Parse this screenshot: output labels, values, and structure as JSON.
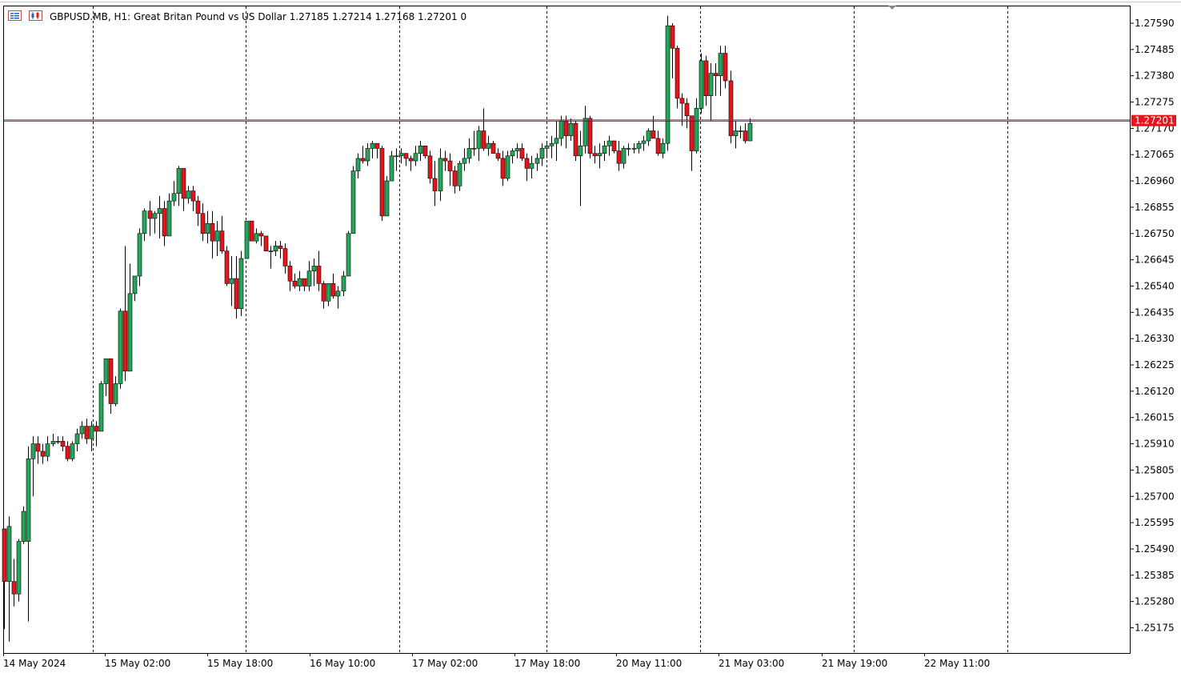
{
  "header": {
    "symbol": "GBPUSD.MB",
    "timeframe": "H1:",
    "description": "Great Britan Pound vs US Dollar",
    "ohlc": "1.27185 1.27214 1.27168 1.27201",
    "volume": "0",
    "icons": [
      "toolbar-list-icon",
      "chart-candles-icon"
    ]
  },
  "colors": {
    "bull": "#26a65b",
    "bear": "#e8141b",
    "wick": "#000000",
    "grid": "#000000",
    "bid_line": "#1f1f9e",
    "ask_line": "#d62f2f",
    "price_tag": "#e8141b"
  },
  "chart_data": {
    "type": "candlestick",
    "symbol": "GBPUSD.MB",
    "timeframe": "H1",
    "current_price": "1.27201",
    "ylim": [
      1.2509,
      1.2767
    ],
    "y_ticks": [
      "1.27590",
      "1.27485",
      "1.27380",
      "1.27275",
      "1.27170",
      "1.27065",
      "1.26960",
      "1.26855",
      "1.26750",
      "1.26645",
      "1.26540",
      "1.26435",
      "1.26330",
      "1.26225",
      "1.26120",
      "1.26015",
      "1.25910",
      "1.25805",
      "1.25700",
      "1.25595",
      "1.25490",
      "1.25385",
      "1.25280",
      "1.25175"
    ],
    "x_ticks": [
      "14 May 2024",
      "15 May 02:00",
      "15 May 18:00",
      "16 May 10:00",
      "17 May 02:00",
      "17 May 18:00",
      "20 May 11:00",
      "21 May 03:00",
      "21 May 19:00",
      "22 May 11:00"
    ],
    "period_separators": 9,
    "candles": [
      [
        1.2557,
        1.2557,
        1.2517,
        1.2536
      ],
      [
        1.2536,
        1.2562,
        1.2512,
        1.2558
      ],
      [
        1.2536,
        1.2545,
        1.2526,
        1.2531
      ],
      [
        1.2531,
        1.2553,
        1.2528,
        1.2552
      ],
      [
        1.2552,
        1.2566,
        1.2551,
        1.2564
      ],
      [
        1.2552,
        1.259,
        1.252,
        1.2585
      ],
      [
        1.2585,
        1.2594,
        1.257,
        1.2591
      ],
      [
        1.2591,
        1.2594,
        1.2583,
        1.2588
      ],
      [
        1.2588,
        1.2591,
        1.2583,
        1.2586
      ],
      [
        1.2586,
        1.2594,
        1.2584,
        1.2591
      ],
      [
        1.2591,
        1.2595,
        1.259,
        1.2592
      ],
      [
        1.2592,
        1.2594,
        1.2591,
        1.2592
      ],
      [
        1.2592,
        1.2594,
        1.2588,
        1.259
      ],
      [
        1.259,
        1.2592,
        1.2584,
        1.2585
      ],
      [
        1.2585,
        1.2592,
        1.2584,
        1.2591
      ],
      [
        1.2591,
        1.2597,
        1.2588,
        1.2595
      ],
      [
        1.2595,
        1.26,
        1.2593,
        1.2598
      ],
      [
        1.2598,
        1.2601,
        1.2591,
        1.2593
      ],
      [
        1.2593,
        1.26,
        1.2588,
        1.2598
      ],
      [
        1.2598,
        1.26,
        1.259,
        1.2596
      ],
      [
        1.2596,
        1.2616,
        1.2596,
        1.2615
      ],
      [
        1.2615,
        1.2625,
        1.261,
        1.2625
      ],
      [
        1.2625,
        1.2625,
        1.2603,
        1.2607
      ],
      [
        1.2607,
        1.2618,
        1.2606,
        1.2615
      ],
      [
        1.2615,
        1.2645,
        1.2613,
        1.2644
      ],
      [
        1.2644,
        1.267,
        1.2616,
        1.262
      ],
      [
        1.262,
        1.2663,
        1.262,
        1.2651
      ],
      [
        1.2651,
        1.2658,
        1.2648,
        1.2658
      ],
      [
        1.2658,
        1.2677,
        1.2654,
        1.2675
      ],
      [
        1.2675,
        1.2685,
        1.2672,
        1.2684
      ],
      [
        1.2684,
        1.2688,
        1.2674,
        1.2681
      ],
      [
        1.2681,
        1.2684,
        1.2675,
        1.2683
      ],
      [
        1.2683,
        1.269,
        1.2673,
        1.2685
      ],
      [
        1.2685,
        1.2688,
        1.267,
        1.2674
      ],
      [
        1.2674,
        1.2691,
        1.2674,
        1.2688
      ],
      [
        1.2688,
        1.2696,
        1.2686,
        1.2691
      ],
      [
        1.2691,
        1.2702,
        1.2686,
        1.2701
      ],
      [
        1.2701,
        1.27,
        1.2684,
        1.2689
      ],
      [
        1.2689,
        1.2694,
        1.2687,
        1.2692
      ],
      [
        1.2692,
        1.2694,
        1.2684,
        1.2688
      ],
      [
        1.2688,
        1.269,
        1.2678,
        1.2683
      ],
      [
        1.2683,
        1.2687,
        1.2672,
        1.2675
      ],
      [
        1.2675,
        1.2684,
        1.2671,
        1.2679
      ],
      [
        1.2679,
        1.2684,
        1.2665,
        1.2672
      ],
      [
        1.2672,
        1.268,
        1.2666,
        1.2676
      ],
      [
        1.2676,
        1.2682,
        1.2667,
        1.2668
      ],
      [
        1.2668,
        1.267,
        1.2654,
        1.2655
      ],
      [
        1.2655,
        1.2666,
        1.2646,
        1.2657
      ],
      [
        1.2657,
        1.2666,
        1.2641,
        1.2645
      ],
      [
        1.2645,
        1.2668,
        1.2642,
        1.2665
      ],
      [
        1.2665,
        1.268,
        1.2665,
        1.268
      ],
      [
        1.268,
        1.2678,
        1.2672,
        1.2672
      ],
      [
        1.2672,
        1.2677,
        1.2671,
        1.2675
      ],
      [
        1.2675,
        1.2676,
        1.267,
        1.2674
      ],
      [
        1.2674,
        1.2673,
        1.2668,
        1.2668
      ],
      [
        1.2668,
        1.267,
        1.2661,
        1.2668
      ],
      [
        1.2668,
        1.2672,
        1.2666,
        1.267
      ],
      [
        1.267,
        1.2672,
        1.2665,
        1.2669
      ],
      [
        1.2669,
        1.2671,
        1.2659,
        1.2662
      ],
      [
        1.2662,
        1.2664,
        1.2652,
        1.2656
      ],
      [
        1.2656,
        1.2659,
        1.2653,
        1.2654
      ],
      [
        1.2654,
        1.266,
        1.2652,
        1.2657
      ],
      [
        1.2657,
        1.2657,
        1.2652,
        1.2654
      ],
      [
        1.2654,
        1.2664,
        1.2652,
        1.266
      ],
      [
        1.266,
        1.2665,
        1.2654,
        1.2662
      ],
      [
        1.2662,
        1.2668,
        1.2652,
        1.2655
      ],
      [
        1.2655,
        1.2656,
        1.2645,
        1.2648
      ],
      [
        1.2648,
        1.2655,
        1.2646,
        1.2655
      ],
      [
        1.2655,
        1.2659,
        1.2649,
        1.265
      ],
      [
        1.265,
        1.2654,
        1.2645,
        1.2652
      ],
      [
        1.2652,
        1.266,
        1.265,
        1.2658
      ],
      [
        1.2658,
        1.2676,
        1.2658,
        1.2675
      ],
      [
        1.2675,
        1.2702,
        1.2675,
        1.27
      ],
      [
        1.27,
        1.2707,
        1.2697,
        1.2705
      ],
      [
        1.2705,
        1.271,
        1.2703,
        1.2704
      ],
      [
        1.2704,
        1.2711,
        1.2702,
        1.2709
      ],
      [
        1.2709,
        1.2712,
        1.2705,
        1.2711
      ],
      [
        1.2711,
        1.2709,
        1.2705,
        1.2709
      ],
      [
        1.2709,
        1.271,
        1.268,
        1.2682
      ],
      [
        1.2682,
        1.2698,
        1.2682,
        1.2696
      ],
      [
        1.2696,
        1.2708,
        1.2696,
        1.2706
      ],
      [
        1.2706,
        1.2709,
        1.27,
        1.2706
      ],
      [
        1.2706,
        1.2709,
        1.2703,
        1.2707
      ],
      [
        1.2707,
        1.2707,
        1.2702,
        1.2705
      ],
      [
        1.2705,
        1.2706,
        1.27,
        1.2704
      ],
      [
        1.2704,
        1.271,
        1.2702,
        1.2707
      ],
      [
        1.2707,
        1.2712,
        1.2704,
        1.271
      ],
      [
        1.271,
        1.271,
        1.2705,
        1.2706
      ],
      [
        1.2706,
        1.2708,
        1.2695,
        1.2697
      ],
      [
        1.2697,
        1.2704,
        1.2686,
        1.2692
      ],
      [
        1.2692,
        1.2709,
        1.2688,
        1.2705
      ],
      [
        1.2705,
        1.2708,
        1.27,
        1.2704
      ],
      [
        1.2704,
        1.2707,
        1.2694,
        1.27
      ],
      [
        1.27,
        1.2702,
        1.2691,
        1.2694
      ],
      [
        1.2694,
        1.2704,
        1.2692,
        1.2703
      ],
      [
        1.2703,
        1.2709,
        1.27,
        1.2705
      ],
      [
        1.2705,
        1.2713,
        1.2703,
        1.2709
      ],
      [
        1.2709,
        1.2716,
        1.2706,
        1.2709
      ],
      [
        1.2709,
        1.2718,
        1.2704,
        1.2716
      ],
      [
        1.2716,
        1.2725,
        1.2708,
        1.2709
      ],
      [
        1.2709,
        1.2714,
        1.2706,
        1.2711
      ],
      [
        1.2711,
        1.2712,
        1.2707,
        1.2707
      ],
      [
        1.2707,
        1.2709,
        1.2704,
        1.2705
      ],
      [
        1.2705,
        1.2708,
        1.2694,
        1.2697
      ],
      [
        1.2697,
        1.2708,
        1.2696,
        1.2706
      ],
      [
        1.2706,
        1.2709,
        1.2703,
        1.2708
      ],
      [
        1.2708,
        1.2711,
        1.2705,
        1.2709
      ],
      [
        1.2709,
        1.2711,
        1.2704,
        1.2705
      ],
      [
        1.2705,
        1.2707,
        1.2696,
        1.2701
      ],
      [
        1.2701,
        1.2706,
        1.2697,
        1.2703
      ],
      [
        1.2703,
        1.2707,
        1.27,
        1.2705
      ],
      [
        1.2705,
        1.2711,
        1.2702,
        1.2709
      ],
      [
        1.2709,
        1.2712,
        1.2705,
        1.271
      ],
      [
        1.271,
        1.2714,
        1.2705,
        1.2711
      ],
      [
        1.2711,
        1.272,
        1.2704,
        1.2713
      ],
      [
        1.2713,
        1.2722,
        1.271,
        1.272
      ],
      [
        1.272,
        1.2722,
        1.2709,
        1.2714
      ],
      [
        1.2714,
        1.2721,
        1.2712,
        1.2719
      ],
      [
        1.2719,
        1.272,
        1.2704,
        1.2706
      ],
      [
        1.2706,
        1.2716,
        1.2686,
        1.271
      ],
      [
        1.271,
        1.2726,
        1.2707,
        1.2721
      ],
      [
        1.2721,
        1.2722,
        1.2705,
        1.2707
      ],
      [
        1.2707,
        1.271,
        1.2703,
        1.2706
      ],
      [
        1.2706,
        1.2711,
        1.2701,
        1.2707
      ],
      [
        1.2707,
        1.2712,
        1.2704,
        1.271
      ],
      [
        1.271,
        1.2714,
        1.2706,
        1.2712
      ],
      [
        1.2712,
        1.2712,
        1.2707,
        1.2708
      ],
      [
        1.2708,
        1.2712,
        1.27,
        1.2703
      ],
      [
        1.2703,
        1.271,
        1.2701,
        1.2709
      ],
      [
        1.2709,
        1.2711,
        1.2706,
        1.2709
      ],
      [
        1.2709,
        1.2711,
        1.2707,
        1.2709
      ],
      [
        1.2709,
        1.2712,
        1.2707,
        1.2711
      ],
      [
        1.2711,
        1.2714,
        1.2708,
        1.2712
      ],
      [
        1.2712,
        1.2717,
        1.271,
        1.2716
      ],
      [
        1.2716,
        1.2722,
        1.2713,
        1.2713
      ],
      [
        1.2713,
        1.2716,
        1.2706,
        1.2707
      ],
      [
        1.2707,
        1.2713,
        1.2705,
        1.2711
      ],
      [
        1.2711,
        1.2762,
        1.2708,
        1.2758
      ],
      [
        1.2758,
        1.2759,
        1.2737,
        1.2749
      ],
      [
        1.2749,
        1.275,
        1.2725,
        1.2729
      ],
      [
        1.2729,
        1.2731,
        1.2718,
        1.2727
      ],
      [
        1.2727,
        1.2729,
        1.2717,
        1.2722
      ],
      [
        1.2722,
        1.2722,
        1.27,
        1.2708
      ],
      [
        1.2708,
        1.2729,
        1.2707,
        1.2725
      ],
      [
        1.2725,
        1.2747,
        1.2723,
        1.2744
      ],
      [
        1.2744,
        1.2746,
        1.2726,
        1.273
      ],
      [
        1.273,
        1.2743,
        1.272,
        1.2739
      ],
      [
        1.2739,
        1.2743,
        1.273,
        1.2738
      ],
      [
        1.2738,
        1.275,
        1.273,
        1.2747
      ],
      [
        1.2747,
        1.275,
        1.2733,
        1.2736
      ],
      [
        1.2736,
        1.274,
        1.2711,
        1.2714
      ],
      [
        1.2714,
        1.272,
        1.2709,
        1.2716
      ],
      [
        1.2716,
        1.2718,
        1.2713,
        1.2716
      ],
      [
        1.2716,
        1.2719,
        1.2711,
        1.2712
      ],
      [
        1.2712,
        1.2721,
        1.2712,
        1.2719
      ]
    ]
  }
}
